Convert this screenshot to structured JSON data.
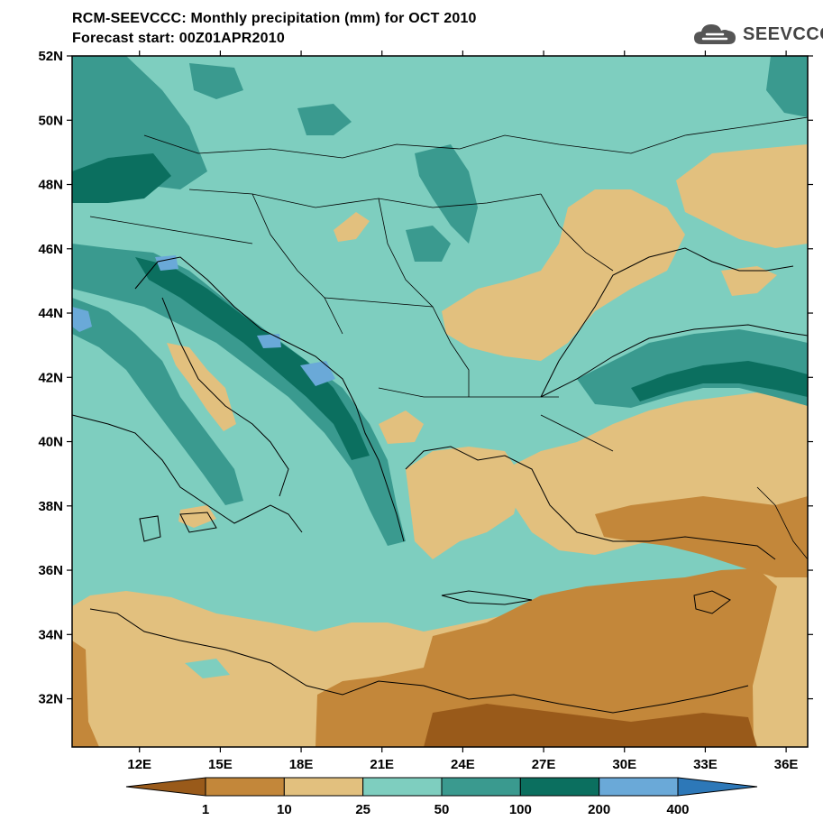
{
  "header": {
    "title_line1": "RCM-SEEVCCC: Monthly precipitation (mm) for OCT 2010",
    "title_line2": "Forecast start: 00Z01APR2010",
    "logo_text": "SEEVCCC"
  },
  "map": {
    "lat_range": [
      30.5,
      52
    ],
    "lon_range": [
      9.5,
      36.8
    ],
    "lat_labels": [
      "52N",
      "50N",
      "48N",
      "46N",
      "44N",
      "42N",
      "40N",
      "38N",
      "36N",
      "34N",
      "32N"
    ],
    "lon_labels": [
      "12E",
      "15E",
      "18E",
      "21E",
      "24E",
      "27E",
      "30E",
      "33E",
      "36E"
    ],
    "lat_values": [
      52,
      50,
      48,
      46,
      44,
      42,
      40,
      38,
      36,
      34,
      32
    ],
    "lon_values": [
      12,
      15,
      18,
      21,
      24,
      27,
      30,
      33,
      36
    ]
  },
  "colorbar": {
    "labels": [
      "1",
      "10",
      "25",
      "50",
      "100",
      "200",
      "400"
    ],
    "colors": [
      "#995a1a",
      "#c3873a",
      "#e2c07e",
      "#7ecebf",
      "#3a9a8f",
      "#0b6f5f",
      "#6aa9d8",
      "#2d78b8"
    ]
  }
}
